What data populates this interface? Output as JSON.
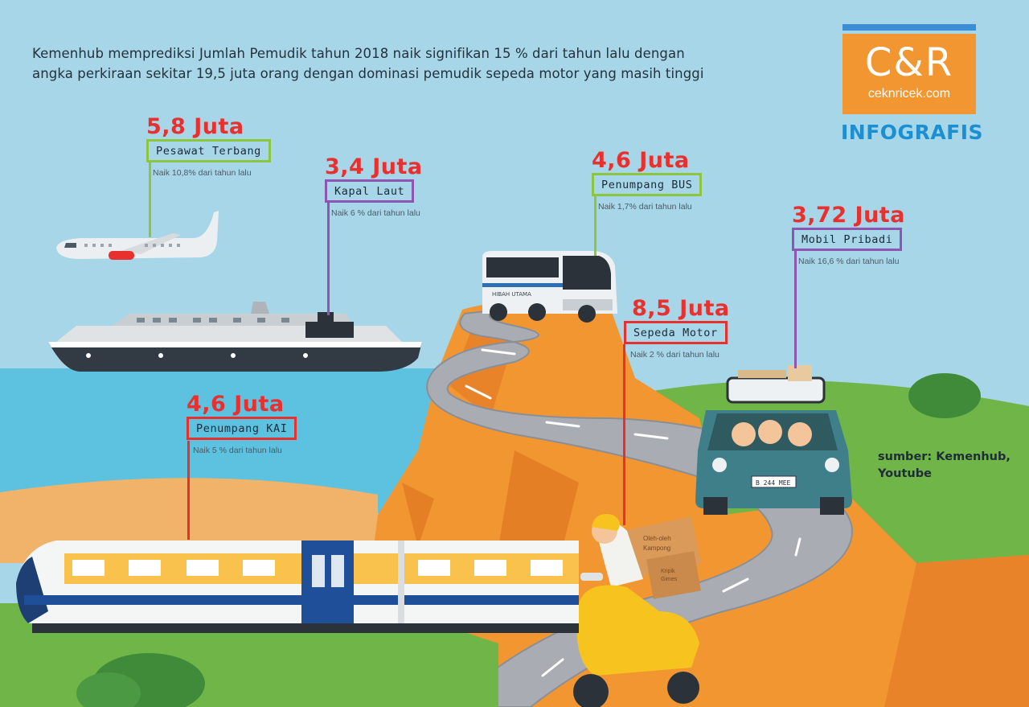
{
  "headline": {
    "line1": "Kemenhub memprediksi Jumlah Pemudik tahun 2018 naik signifikan 15 % dari tahun lalu dengan",
    "line2": "angka perkiraan sekitar 19,5 juta orang dengan dominasi pemudik sepeda motor yang masih tinggi"
  },
  "logo": {
    "mark": "C&R",
    "domain": "ceknricek.com"
  },
  "section_label": "INFOGRAFIS",
  "source": {
    "line1": "sumber: Kemenhub,",
    "line2": "Youtube"
  },
  "stats": {
    "pesawat": {
      "value": "5,8 Juta",
      "label": "Pesawat Terbang",
      "note": "Naik 10,8% dari tahun lalu"
    },
    "kapal": {
      "value": "3,4 Juta",
      "label": "Kapal Laut",
      "note": "Naik 6 % dari tahun lalu"
    },
    "bus": {
      "value": "4,6 Juta",
      "label": "Penumpang BUS",
      "note": "Naik 1,7% dari tahun lalu"
    },
    "mobil": {
      "value": "3,72 Juta",
      "label": "Mobil Pribadi",
      "note": "Naik 16,6 % dari tahun lalu"
    },
    "motor": {
      "value": "8,5 Juta",
      "label": "Sepeda Motor",
      "note": "Naik 2 % dari tahun lalu"
    },
    "kai": {
      "value": "4,6 Juta",
      "label": "Penumpang KAI",
      "note": "Naik 5 % dari tahun lalu"
    }
  },
  "vehicle_text": {
    "bus_side": "HIBAH UTAMA",
    "car_plate": "B 244 MEE",
    "box_text1": "Oleh-oleh",
    "box_text2": "Kampong",
    "box_text3": "Kripik",
    "box_text4": "Gimes"
  },
  "colors": {
    "sky": "#a6d6e8",
    "sea": "#5cc2e0",
    "cliff": "#f29631",
    "grass": "#6fb548",
    "road": "#a9adb3",
    "value_red": "#e8312f",
    "green_box": "#8cc63f",
    "purple_box": "#8e55b3",
    "red_box": "#e8312f"
  },
  "icons": [
    "airplane-icon",
    "ship-icon",
    "bus-icon",
    "car-icon",
    "scooter-icon",
    "train-icon"
  ]
}
